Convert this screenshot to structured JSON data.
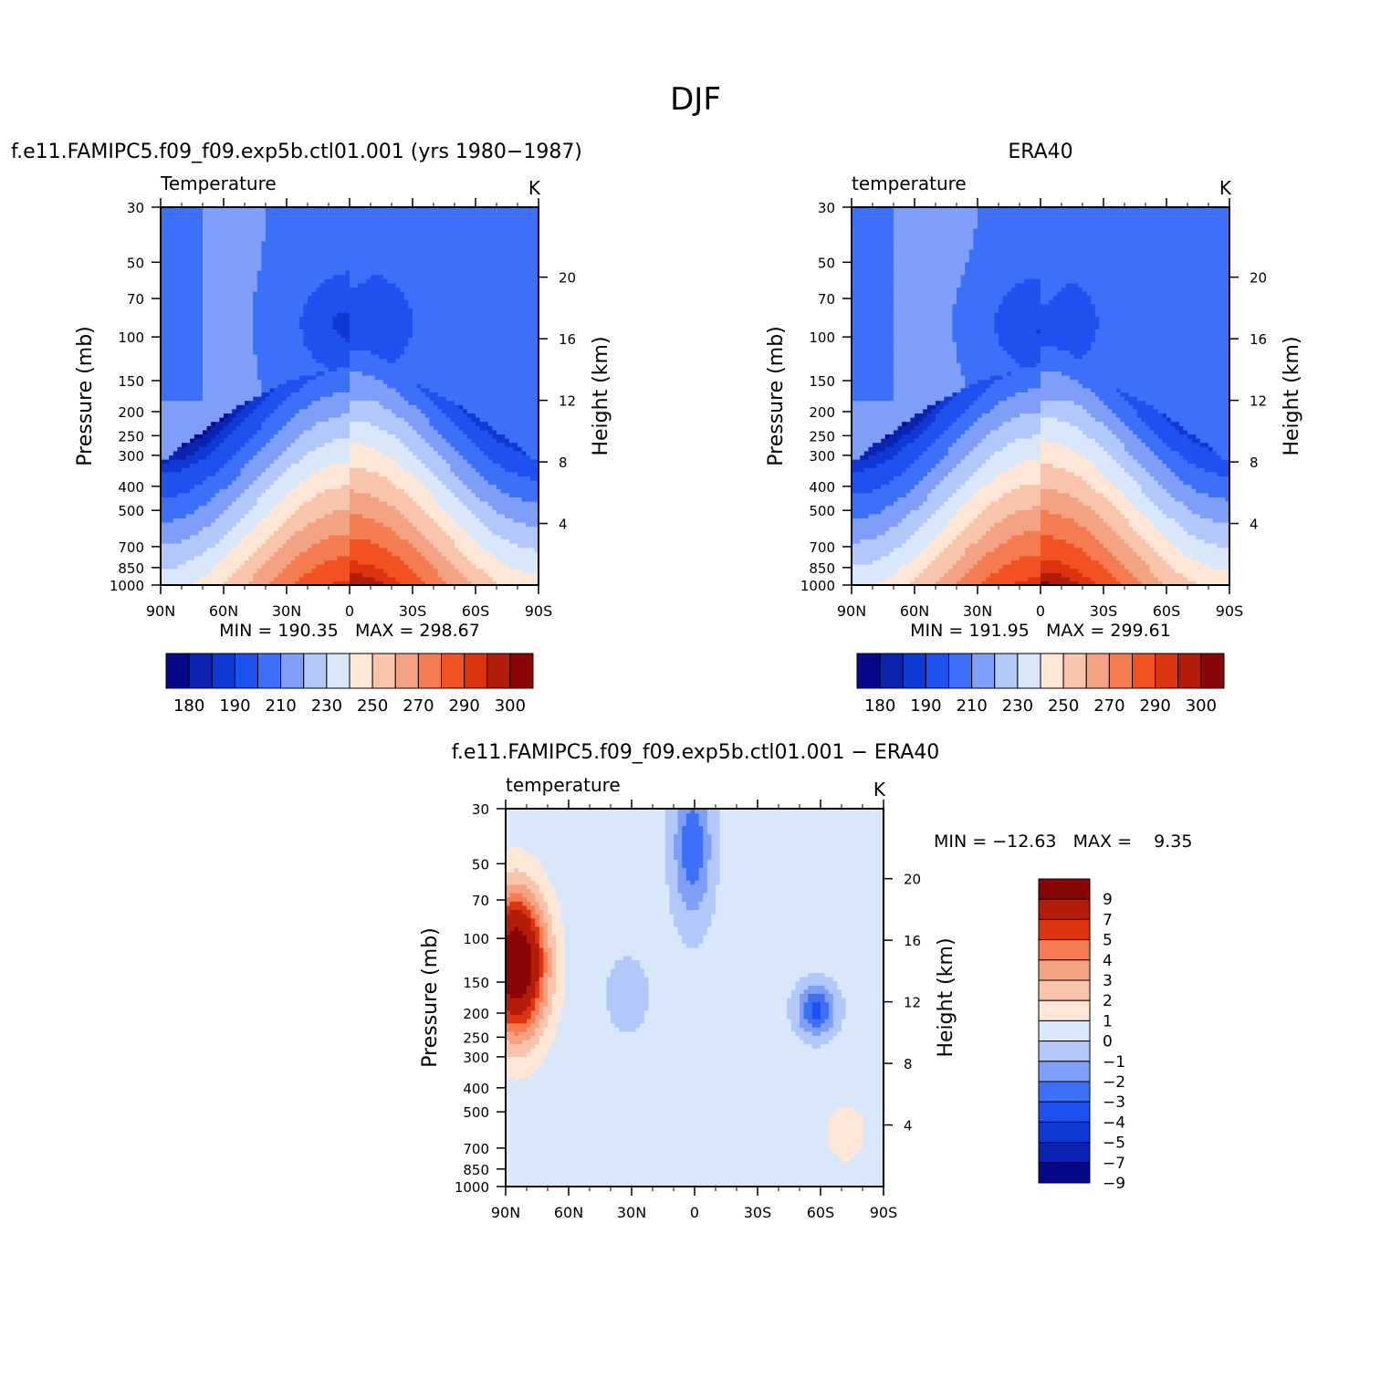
{
  "page_title": "DJF",
  "panels": [
    {
      "id": "model",
      "title": "f.e11.FAMIPC5.f09_f09.exp5b.ctl01.001 (yrs 1980−1987)",
      "left_label": "Temperature",
      "right_label": "K",
      "ylabel": "Pressure (mb)",
      "y2label": "Height (km)",
      "stats": "MIN = 190.35   MAX = 298.67"
    },
    {
      "id": "obs",
      "title": "ERA40",
      "left_label": "temperature",
      "right_label": "K",
      "ylabel": "Pressure (mb)",
      "y2label": "Height (km)",
      "stats": "MIN = 191.95   MAX = 299.61"
    },
    {
      "id": "diff",
      "title": "f.e11.FAMIPC5.f09_f09.exp5b.ctl01.001 − ERA40",
      "left_label": "temperature",
      "right_label": "K",
      "ylabel": "Pressure (mb)",
      "y2label": "Height (km)",
      "stats": "MIN = −12.63   MAX =    9.35"
    }
  ],
  "colors": {
    "abs_scale": [
      "#08088c",
      "#0c22b0",
      "#1038d4",
      "#1e52f0",
      "#3c70f8",
      "#7e9ef8",
      "#b2c8fa",
      "#d8e8fa",
      "#fde6d6",
      "#f8c4ac",
      "#f4a284",
      "#f47c50",
      "#f25222",
      "#dc3410",
      "#b41c0a",
      "#8a0606"
    ],
    "diff_scale": [
      "#08088c",
      "#0c22b0",
      "#1038d4",
      "#1e52f0",
      "#3c70f8",
      "#7e9ef8",
      "#b2c8fa",
      "#d8e8fa",
      "#fde6d6",
      "#f8c4ac",
      "#f4a284",
      "#f47c50",
      "#dc3410",
      "#b41c0a",
      "#8a0606"
    ]
  },
  "chart_data": [
    {
      "type": "heatmap",
      "name_shown": "f.e11.FAMIPC5.f09_f09.exp5b.ctl01.001 (yrs 1980−1987)",
      "variable": "Temperature",
      "units": "K",
      "x_ticks": [
        "90N",
        "60N",
        "30N",
        "0",
        "30S",
        "60S",
        "90S"
      ],
      "x_range": [
        90,
        -90
      ],
      "y_ticks": [
        30,
        50,
        70,
        100,
        150,
        200,
        250,
        300,
        400,
        500,
        700,
        850,
        1000
      ],
      "y_scale": "log",
      "y_range": [
        1000,
        30
      ],
      "y2_ticks": [
        4,
        8,
        12,
        16,
        20
      ],
      "min": 190.35,
      "max": 298.67,
      "colorbar_labels": [
        "180",
        "190",
        "210",
        "230",
        "250",
        "270",
        "290",
        "300"
      ],
      "fields": {
        "model": {
          "min": 190.35,
          "max": 298.67
        }
      }
    },
    {
      "type": "heatmap",
      "name_shown": "ERA40",
      "variable": "temperature",
      "units": "K",
      "x_ticks": [
        "90N",
        "60N",
        "30N",
        "0",
        "30S",
        "60S",
        "90S"
      ],
      "x_range": [
        90,
        -90
      ],
      "y_ticks": [
        30,
        50,
        70,
        100,
        150,
        200,
        250,
        300,
        400,
        500,
        700,
        850,
        1000
      ],
      "y_scale": "log",
      "y_range": [
        1000,
        30
      ],
      "y2_ticks": [
        4,
        8,
        12,
        16,
        20
      ],
      "min": 191.95,
      "max": 299.61,
      "colorbar_labels": [
        "180",
        "190",
        "210",
        "230",
        "250",
        "270",
        "290",
        "300"
      ]
    },
    {
      "type": "heatmap",
      "name_shown": "f.e11.FAMIPC5.f09_f09.exp5b.ctl01.001 − ERA40",
      "variable": "temperature",
      "units": "K",
      "x_ticks": [
        "90N",
        "60N",
        "30N",
        "0",
        "30S",
        "60S",
        "90S"
      ],
      "x_range": [
        90,
        -90
      ],
      "y_ticks": [
        30,
        50,
        70,
        100,
        150,
        200,
        250,
        300,
        400,
        500,
        700,
        850,
        1000
      ],
      "y_scale": "log",
      "y_range": [
        1000,
        30
      ],
      "y2_ticks": [
        4,
        8,
        12,
        16,
        20
      ],
      "min": -12.63,
      "max": 9.35,
      "colorbar_labels": [
        "9",
        "7",
        "5",
        "4",
        "3",
        "2",
        "1",
        "0",
        "−1",
        "−2",
        "−3",
        "−4",
        "−5",
        "−7",
        "−9"
      ]
    }
  ]
}
